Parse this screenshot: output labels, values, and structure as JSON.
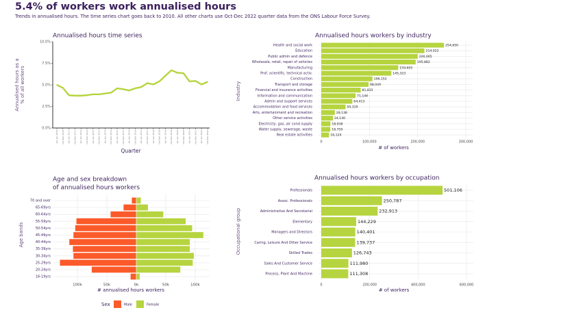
{
  "header": {
    "title": "5.4% of workers work annualised hours",
    "subtitle": "Trends in annualised hours. The time series chart goes back to 2010. All other charts use Oct-Dec 2022 quarter data from the ONS Labour Force Survey."
  },
  "colors": {
    "green": "#b6d43f",
    "red": "#fb5a2a",
    "text": "#3b1f5c",
    "grid": "#ebebeb"
  },
  "chart_data": [
    {
      "id": "timeseries",
      "type": "line",
      "title": "Annualised hours time series",
      "xlabel": "Quarter",
      "ylabel": [
        "Annualised hours as a",
        "% of all workers"
      ],
      "ylim": [
        0,
        10
      ],
      "yticks": [
        "0.0%",
        "2.5%",
        "5.0%",
        "7.5%",
        "10.0%"
      ],
      "x": [
        "Apr-Jun 2010",
        "Oct-Dec 2010",
        "Apr-Jun 2011",
        "Oct-Dec 2011",
        "Apr-Jun 2012",
        "Oct-Dec 2012",
        "Apr-Jun 2013",
        "Oct-Dec 2013",
        "Apr-Jun 2014",
        "Oct-Dec 2014",
        "Apr-Jun 2015",
        "Oct-Dec 2015",
        "Apr-Jun 2016",
        "Oct-Dec 2016",
        "Apr-Jun 2017",
        "Oct-Dec 2017",
        "Apr-Jun 2018",
        "Oct-Dec 2018",
        "Apr-Jun 2019",
        "Oct-Dec 2019",
        "Apr-Jun 2020",
        "Oct-Dec 2020",
        "Apr-Jun 2021",
        "Oct-Dec 2021",
        "Apr-Jun 2022",
        "Oct-Dec 2022"
      ],
      "values": [
        5.0,
        4.65,
        3.8,
        3.75,
        3.75,
        3.8,
        3.9,
        3.9,
        4.0,
        4.1,
        4.6,
        4.5,
        4.35,
        4.6,
        4.75,
        5.2,
        5.05,
        5.4,
        6.05,
        6.7,
        6.4,
        6.35,
        5.4,
        5.45,
        5.05,
        5.35
      ]
    },
    {
      "id": "industry",
      "type": "bar",
      "orientation": "horizontal",
      "title": "Annualised hours workers by industry",
      "xlabel": "# of workers",
      "ylabel": "Industry",
      "xlim": [
        0,
        300000
      ],
      "xticks": [
        "0",
        "100,000",
        "200,000",
        "300,000"
      ],
      "categories": [
        "Health and social work",
        "Education",
        "Public admin and defence",
        "Wholesale, retail, repair of vehicles",
        "Manufacturing",
        "Prof, scientific, technical activ.",
        "Construction",
        "Transport and storage",
        "Financial and insurance activities",
        "Information and communication",
        "Admin and support services",
        "Accommodation and food services",
        "Arts, entertainment and recreation",
        "Other service activities",
        "Electricity, gas, air cond supply",
        "Water supply, sewerage, waste",
        "Real estate activities"
      ],
      "values": [
        254650,
        214022,
        200065,
        195882,
        159605,
        145323,
        106152,
        98049,
        81815,
        71144,
        64413,
        50319,
        28138,
        24140,
        18938,
        18759,
        16124
      ],
      "labels": [
        "254,650",
        "214,022",
        "200,065",
        "195,882",
        "159,605",
        "145,323",
        "106,152",
        "98,049",
        "81,815",
        "71,144",
        "64,413",
        "50,319",
        "28,138",
        "24,140",
        "18,938",
        "18,759",
        "16,124"
      ]
    },
    {
      "id": "age",
      "type": "bar",
      "orientation": "horizontal-diverging",
      "title": [
        "Age and sex breakdown",
        "of annualised hours workers"
      ],
      "xlabel": "# annualised hours workers",
      "ylabel": "Age bands",
      "xlim": [
        -130000,
        130000
      ],
      "xticks": [
        "100k",
        "50k",
        "0k",
        "50k",
        "100k"
      ],
      "xtick_values": [
        -100000,
        -50000,
        0,
        50000,
        100000
      ],
      "categories": [
        "70 and over",
        "65-69yrs",
        "60-64yrs",
        "55-59yrs",
        "50-54yrs",
        "45-49yrs",
        "40-44yrs",
        "35-39yrs",
        "30-34yrs",
        "25-29yrs",
        "20-24yrs",
        "16-19yrs"
      ],
      "series": [
        {
          "name": "Male",
          "values": [
            8000,
            22000,
            44000,
            102000,
            104000,
            107000,
            114000,
            108000,
            107000,
            130000,
            76000,
            10000
          ]
        },
        {
          "name": "Female",
          "values": [
            8000,
            20000,
            46000,
            84000,
            95000,
            114000,
            91000,
            91000,
            98000,
            96000,
            75000,
            6000
          ]
        }
      ],
      "legend": {
        "title": "Sex",
        "placement": "bottom"
      }
    },
    {
      "id": "occupation",
      "type": "bar",
      "orientation": "horizontal",
      "title": "Annualised hours workers by occupation",
      "xlabel": "# of workers",
      "ylabel": "Occupational group",
      "xlim": [
        0,
        600000
      ],
      "xticks": [
        "0",
        "200,000",
        "400,000",
        "600,000"
      ],
      "categories": [
        "Professionals",
        "Assoc. Professionals",
        "Administrative And Secretarial",
        "Elementary",
        "Managers and Directors",
        "Caring, Leisure And Other Service",
        "Skilled Trades",
        "Sales And Customer Service",
        "Process, Plant And Machine"
      ],
      "values": [
        501106,
        250787,
        232913,
        144229,
        140401,
        139737,
        126743,
        111980,
        111308
      ],
      "labels": [
        "501,106",
        "250,787",
        "232,913",
        "144,229",
        "140,401",
        "139,737",
        "126,743",
        "111,980",
        "111,308"
      ]
    }
  ]
}
